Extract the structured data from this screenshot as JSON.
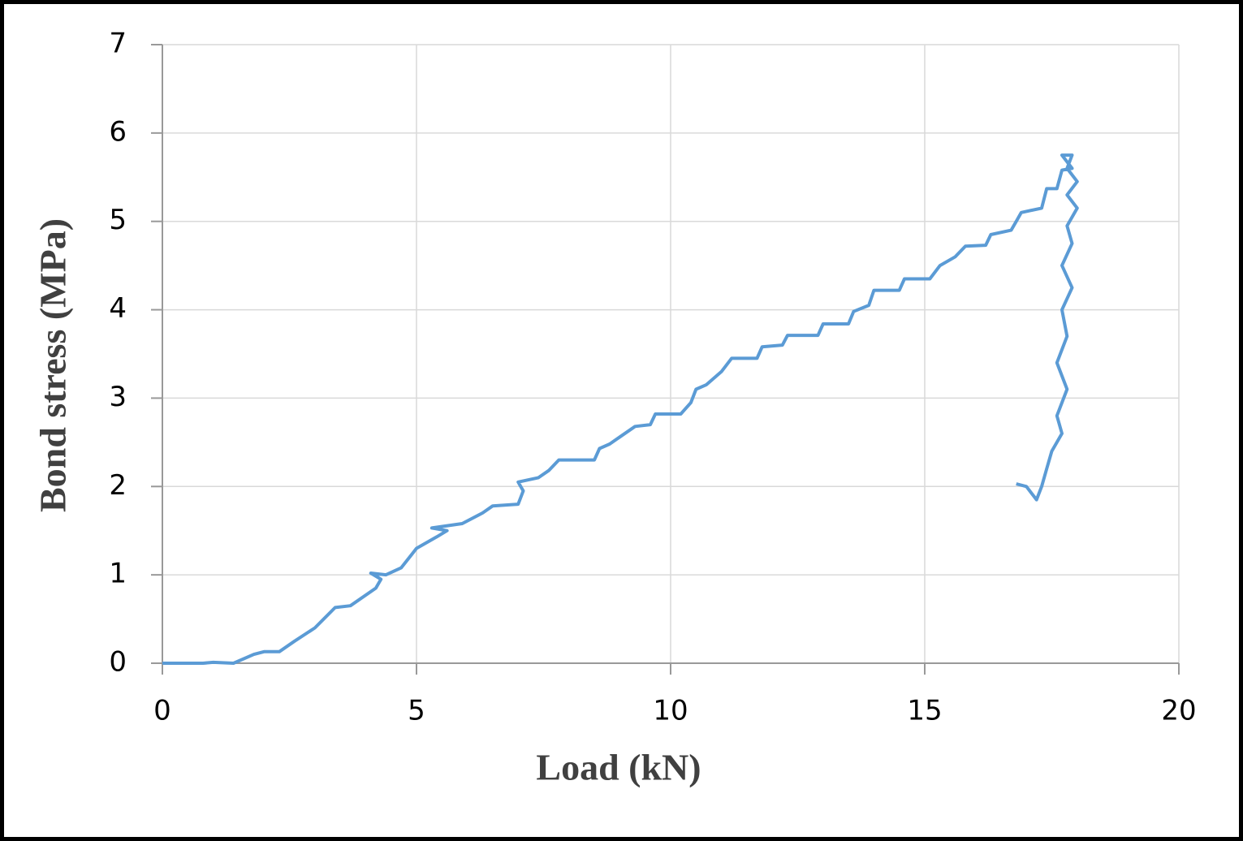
{
  "chart_data": {
    "type": "line",
    "x_label": "Load (kN)",
    "y_label": "Bond stress (MPa)",
    "x": [
      0,
      0.8,
      1.0,
      1.4,
      1.8,
      2.0,
      2.3,
      2.6,
      3.0,
      3.4,
      3.7,
      4.2,
      4.3,
      4.1,
      4.4,
      4.7,
      5.0,
      5.4,
      5.6,
      5.3,
      5.9,
      6.3,
      6.5,
      7.0,
      7.1,
      7.0,
      7.4,
      7.6,
      7.8,
      8.5,
      8.6,
      8.8,
      9.0,
      9.3,
      9.6,
      9.7,
      10.2,
      10.4,
      10.5,
      10.7,
      11.0,
      11.2,
      11.7,
      11.8,
      12.2,
      12.3,
      12.9,
      13.0,
      13.5,
      13.6,
      13.9,
      14.0,
      14.5,
      14.6,
      15.1,
      15.3,
      15.6,
      15.8,
      16.2,
      16.3,
      16.7,
      16.8,
      16.9,
      17.3,
      17.4,
      17.6,
      17.7,
      17.9,
      17.7,
      17.9,
      17.8,
      18.0,
      17.8,
      18.0,
      17.8,
      17.9,
      17.7,
      17.9,
      17.7,
      17.8,
      17.6,
      17.8,
      17.6,
      17.7,
      17.5,
      17.4,
      17.3,
      17.2,
      17.0,
      16.8
    ],
    "values": [
      0,
      0,
      0.01,
      0,
      0.1,
      0.13,
      0.13,
      0.25,
      0.4,
      0.63,
      0.65,
      0.85,
      0.95,
      1.02,
      1.0,
      1.08,
      1.3,
      1.43,
      1.5,
      1.53,
      1.58,
      1.7,
      1.78,
      1.8,
      1.95,
      2.05,
      2.1,
      2.18,
      2.3,
      2.3,
      2.43,
      2.48,
      2.56,
      2.68,
      2.7,
      2.82,
      2.82,
      2.95,
      3.1,
      3.15,
      3.3,
      3.45,
      3.45,
      3.58,
      3.6,
      3.71,
      3.71,
      3.84,
      3.84,
      3.98,
      4.05,
      4.22,
      4.22,
      4.35,
      4.35,
      4.5,
      4.6,
      4.72,
      4.73,
      4.85,
      4.9,
      5.0,
      5.1,
      5.15,
      5.37,
      5.37,
      5.58,
      5.6,
      5.75,
      5.75,
      5.6,
      5.45,
      5.3,
      5.15,
      4.95,
      4.75,
      4.5,
      4.25,
      4.0,
      3.7,
      3.4,
      3.1,
      2.8,
      2.6,
      2.4,
      2.2,
      2.0,
      1.85,
      2.0,
      2.03
    ],
    "color": "#5b9bd5",
    "xlim": [
      0,
      20
    ],
    "xticks": [
      0,
      5,
      10,
      15,
      20
    ],
    "ylim": [
      0,
      7
    ],
    "yticks": [
      0,
      1,
      2,
      3,
      4,
      5,
      6,
      7
    ],
    "grid": true
  }
}
